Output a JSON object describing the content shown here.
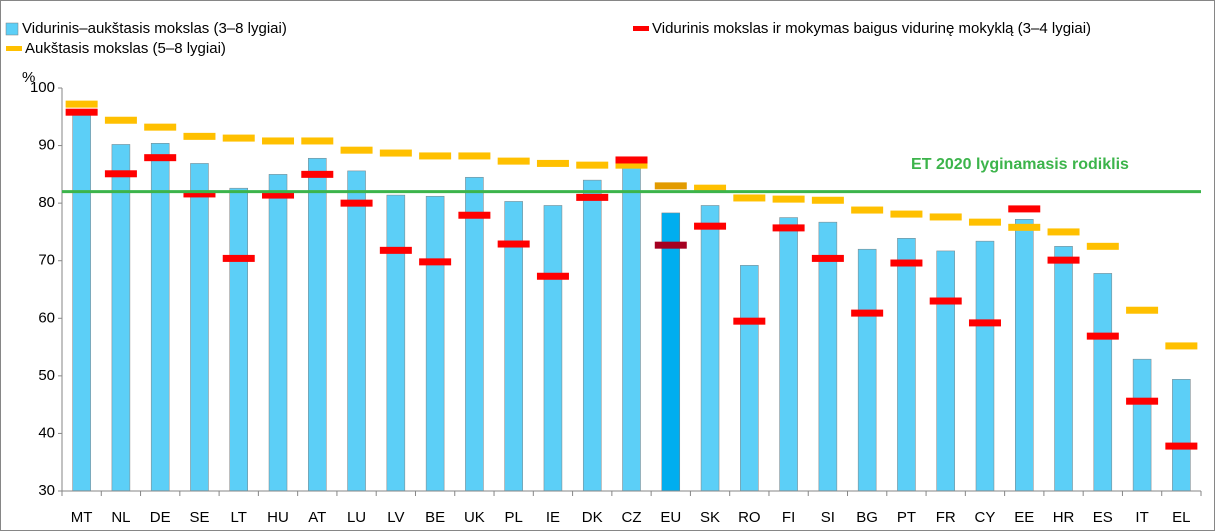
{
  "chart_data": {
    "type": "bar",
    "y_label": "%",
    "categories": [
      "MT",
      "NL",
      "DE",
      "SE",
      "LT",
      "HU",
      "AT",
      "LU",
      "LV",
      "BE",
      "UK",
      "PL",
      "IE",
      "DK",
      "CZ",
      "EU",
      "SK",
      "RO",
      "FI",
      "SI",
      "BG",
      "PT",
      "FR",
      "CY",
      "EE",
      "HR",
      "ES",
      "IT",
      "EL"
    ],
    "highlight": "EU",
    "series": [
      {
        "name": "Vidurinis–aukštasis mokslas (3–8 lygiai)",
        "kind": "bar",
        "color": "#5ccff7",
        "highlight_color": "#00aeef",
        "values": [
          95.6,
          90.2,
          90.4,
          86.9,
          82.6,
          85.0,
          87.8,
          85.6,
          81.4,
          81.2,
          84.5,
          80.3,
          79.6,
          84.0,
          86.6,
          78.3,
          79.6,
          69.2,
          77.5,
          76.7,
          72.0,
          73.9,
          71.7,
          73.4,
          77.2,
          72.5,
          67.8,
          52.9,
          49.4
        ]
      },
      {
        "name": "Vidurinis mokslas ir mokymas baigus vidurinę mokyklą (3–4 lygiai)",
        "kind": "marker",
        "color": "#ff0000",
        "highlight_color": "#a50021",
        "values": [
          95.8,
          85.1,
          87.9,
          81.6,
          70.4,
          81.4,
          85.0,
          80.0,
          71.8,
          69.8,
          77.9,
          72.9,
          67.3,
          81.0,
          87.5,
          72.7,
          76.0,
          59.5,
          75.7,
          70.4,
          60.9,
          69.6,
          63.0,
          59.2,
          79.0,
          70.1,
          56.9,
          45.6,
          37.8
        ]
      },
      {
        "name": "Aukštasis mokslas (5–8 lygiai)",
        "kind": "marker",
        "color": "#ffc000",
        "highlight_color": "#e29b00",
        "values": [
          97.2,
          94.4,
          93.2,
          91.6,
          91.3,
          90.8,
          90.8,
          89.2,
          88.7,
          88.2,
          88.2,
          87.3,
          86.9,
          86.6,
          86.6,
          83.0,
          82.6,
          80.9,
          80.7,
          80.5,
          78.8,
          78.1,
          77.6,
          76.7,
          75.8,
          75.0,
          72.5,
          61.4,
          55.2
        ]
      }
    ],
    "benchmark": {
      "label": "ET 2020 lyginamasis rodiklis",
      "value": 82,
      "color": "#3cb44b"
    },
    "ylim": [
      30,
      100
    ],
    "yticks": [
      30,
      40,
      50,
      60,
      70,
      80,
      90,
      100
    ],
    "grid": false
  }
}
